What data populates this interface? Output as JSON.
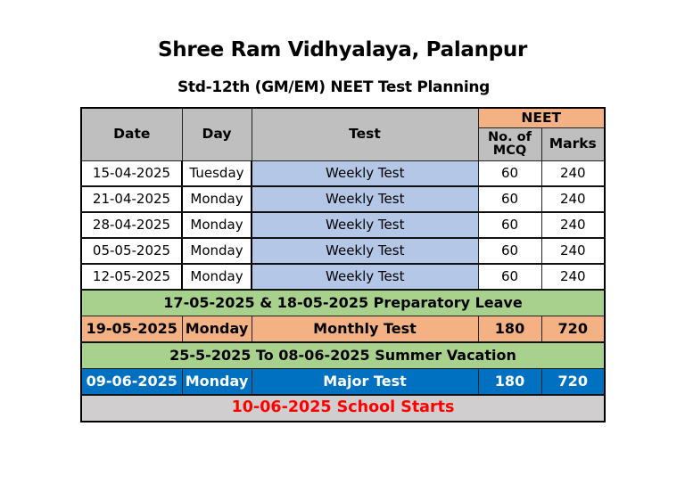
{
  "header": {
    "title": "Shree Ram Vidhyalaya, Palanpur",
    "subtitle": "Std-12th (GM/EM) NEET Test Planning"
  },
  "table": {
    "columns": {
      "date": "Date",
      "day": "Day",
      "test": "Test",
      "group": "NEET",
      "mcq": "No. of MCQ",
      "marks": "Marks"
    },
    "weekly_rows": [
      {
        "date": "15-04-2025",
        "day": "Tuesday",
        "test": "Weekly Test",
        "mcq": "60",
        "marks": "240"
      },
      {
        "date": "21-04-2025",
        "day": "Monday",
        "test": "Weekly Test",
        "mcq": "60",
        "marks": "240"
      },
      {
        "date": "28-04-2025",
        "day": "Monday",
        "test": "Weekly Test",
        "mcq": "60",
        "marks": "240"
      },
      {
        "date": "05-05-2025",
        "day": "Monday",
        "test": "Weekly Test",
        "mcq": "60",
        "marks": "240"
      },
      {
        "date": "12-05-2025",
        "day": "Monday",
        "test": "Weekly Test",
        "mcq": "60",
        "marks": "240"
      }
    ],
    "leave_note": "17-05-2025 & 18-05-2025 Preparatory  Leave",
    "monthly_row": {
      "date": "19-05-2025",
      "day": "Monday",
      "test": "Monthly Test",
      "mcq": "180",
      "marks": "720"
    },
    "vacation_note": "25-5-2025 To 08-06-2025 Summer Vacation",
    "major_row": {
      "date": "09-06-2025",
      "day": "Monday",
      "test": "Major Test",
      "mcq": "180",
      "marks": "720"
    },
    "school_note": "10-06-2025 School Starts"
  },
  "colors": {
    "header_grey": "#bfbfbf",
    "neet_orange": "#f4b183",
    "weekly_blue": "#b4c7e7",
    "note_green": "#a9d18e",
    "major_blue": "#0070c0",
    "school_red": "#ff0000"
  }
}
